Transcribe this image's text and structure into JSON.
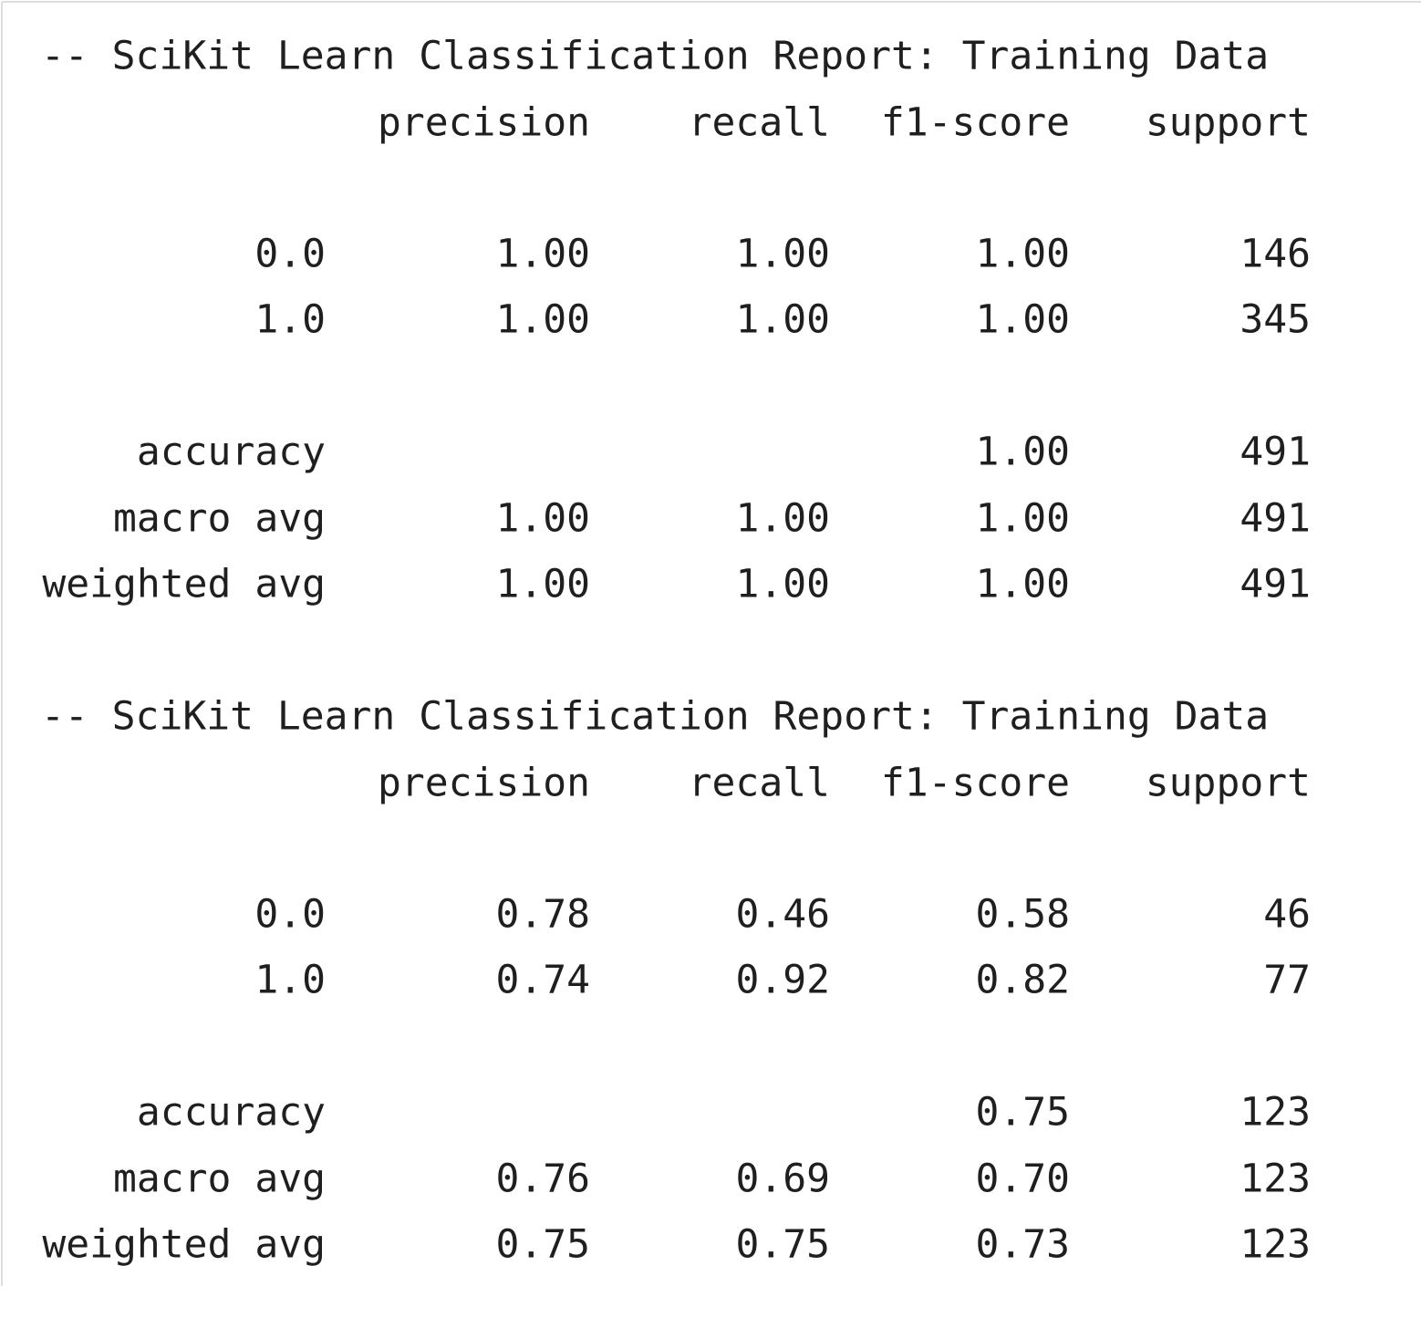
{
  "reports": [
    {
      "title": "-- SciKit Learn Classification Report: Training Data",
      "columns": [
        "precision",
        "recall",
        "f1-score",
        "support"
      ],
      "rows": [
        {
          "label": "0.0",
          "cells": [
            "1.00",
            "1.00",
            "1.00",
            "146"
          ]
        },
        {
          "label": "1.0",
          "cells": [
            "1.00",
            "1.00",
            "1.00",
            "345"
          ]
        },
        {
          "label": "accuracy",
          "cells": [
            "1.00",
            "491"
          ]
        },
        {
          "label": "macro avg",
          "cells": [
            "1.00",
            "1.00",
            "1.00",
            "491"
          ]
        },
        {
          "label": "weighted avg",
          "cells": [
            "1.00",
            "1.00",
            "1.00",
            "491"
          ]
        }
      ]
    },
    {
      "title": "-- SciKit Learn Classification Report: Training Data",
      "columns": [
        "precision",
        "recall",
        "f1-score",
        "support"
      ],
      "rows": [
        {
          "label": "0.0",
          "cells": [
            "0.78",
            "0.46",
            "0.58",
            "46"
          ]
        },
        {
          "label": "1.0",
          "cells": [
            "0.74",
            "0.92",
            "0.82",
            "77"
          ]
        },
        {
          "label": "accuracy",
          "cells": [
            "0.75",
            "123"
          ]
        },
        {
          "label": "macro avg",
          "cells": [
            "0.76",
            "0.69",
            "0.70",
            "123"
          ]
        },
        {
          "label": "weighted avg",
          "cells": [
            "0.75",
            "0.75",
            "0.73",
            "123"
          ]
        }
      ]
    }
  ]
}
